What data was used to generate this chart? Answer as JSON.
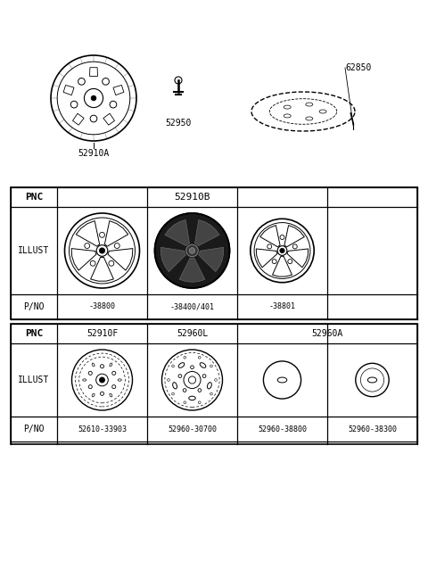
{
  "bg_color": "#ffffff",
  "line_color": "#000000",
  "table1": {
    "pnc_header": "52910B",
    "pno_labels": [
      "-38800",
      "-38400/401",
      "-38801",
      ""
    ],
    "pnc_label": "PNC",
    "illust_label": "ILLUST",
    "pno_label": "P/NO"
  },
  "table2": {
    "pnc_col_labels": [
      "52910F",
      "52960L",
      "52960A"
    ],
    "pno_labels": [
      "52610-33903",
      "52960-30700",
      "52960-38800",
      "52960-38300"
    ],
    "pnc_label": "PNC",
    "illust_label": "ILLUST",
    "pno_label": "P/NO"
  },
  "top_labels": {
    "wheel_label": "52910A",
    "valve_label": "52950",
    "cap_label": "62850"
  },
  "font_size_tiny": 6,
  "font_size_small": 7,
  "font_size_medium": 8
}
